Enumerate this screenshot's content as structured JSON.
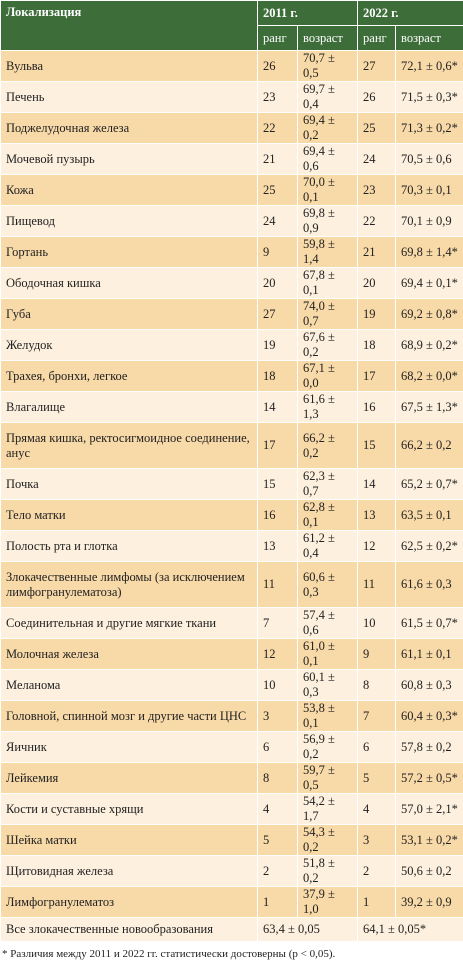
{
  "table": {
    "header": {
      "location": "Локализация",
      "year1": "2011 г.",
      "year2": "2022 г.",
      "rank": "ранг",
      "age": "возраст"
    },
    "rows": [
      [
        "Вульва",
        "26",
        "70,7 ± 0,5",
        "27",
        "72,1 ± 0,6*"
      ],
      [
        "Печень",
        "23",
        "69,7 ± 0,4",
        "26",
        "71,5 ± 0,3*"
      ],
      [
        "Поджелудочная железа",
        "22",
        "69,4 ± 0,2",
        "25",
        "71,3 ± 0,2*"
      ],
      [
        "Мочевой пузырь",
        "21",
        "69,4 ± 0,6",
        "24",
        "70,5 ± 0,6"
      ],
      [
        "Кожа",
        "25",
        "70,0 ± 0,1",
        "23",
        "70,3 ± 0,1"
      ],
      [
        "Пищевод",
        "24",
        "69,8 ± 0,9",
        "22",
        "70,1 ± 0,9"
      ],
      [
        "Гортань",
        "9",
        "59,8 ± 1,4",
        "21",
        "69,8 ± 1,4*"
      ],
      [
        "Ободочная кишка",
        "20",
        "67,8 ± 0,1",
        "20",
        "69,4 ± 0,1*"
      ],
      [
        "Губа",
        "27",
        "74,0 ± 0,7",
        "19",
        "69,2 ± 0,8*"
      ],
      [
        "Желудок",
        "19",
        "67,6 ± 0,2",
        "18",
        "68,9 ± 0,2*"
      ],
      [
        "Трахея, бронхи, легкое",
        "18",
        "67,1 ± 0,0",
        "17",
        "68,2 ± 0,0*"
      ],
      [
        "Влагалище",
        "14",
        "61,6 ± 1,3",
        "16",
        "67,5 ± 1,3*"
      ],
      [
        "Прямая кишка, ректосигмоидное соединение, анус",
        "17",
        "66,2 ± 0,2",
        "15",
        "66,2 ± 0,2"
      ],
      [
        "Почка",
        "15",
        "62,3 ± 0,7",
        "14",
        "65,2 ± 0,7*"
      ],
      [
        "Тело матки",
        "16",
        "62,8 ± 0,1",
        "13",
        "63,5 ± 0,1"
      ],
      [
        "Полость рта и глотка",
        "13",
        "61,2 ± 0,4",
        "12",
        "62,5 ± 0,2*"
      ],
      [
        "Злокачественные лимфомы (за исключением лимфогранулематоза)",
        "11",
        "60,6 ± 0,3",
        "11",
        "61,6 ± 0,3"
      ],
      [
        "Соединительная и другие мягкие ткани",
        "7",
        "57,4 ± 0,6",
        "10",
        "61,5 ± 0,7*"
      ],
      [
        "Молочная железа",
        "12",
        "61,0 ± 0,1",
        "9",
        "61,1 ± 0,1"
      ],
      [
        "Меланома",
        "10",
        "60,1 ± 0,3",
        "8",
        "60,8 ± 0,3"
      ],
      [
        "Головной, спинной мозг и другие части ЦНС",
        "3",
        "53,8 ± 0,1",
        "7",
        "60,4 ± 0,3*"
      ],
      [
        "Яичник",
        "6",
        "56,9 ± 0,2",
        "6",
        "57,8 ± 0,2"
      ],
      [
        "Лейкемия",
        "8",
        "59,7 ± 0,5",
        "5",
        "57,2 ± 0,5*"
      ],
      [
        "Кости и суставные хрящи",
        "4",
        "54,2 ± 1,7",
        "4",
        "57,0 ± 2,1*"
      ],
      [
        "Шейка матки",
        "5",
        "54,3 ± 0,2",
        "3",
        "53,1 ± 0,2*"
      ],
      [
        "Щитовидная железа",
        "2",
        "51,8 ± 0,2",
        "2",
        "50,6 ± 0,2"
      ],
      [
        "Лимфогранулематоз",
        "1",
        "37,9 ± 1,0",
        "1",
        "39,2 ± 0,9"
      ]
    ],
    "total": [
      "Все злокачественные новообразования",
      "63,4 ± 0,05",
      "64,1 ± 0,05*"
    ],
    "footnote": "* Различия между 2011 и 2022 гг. статистически достоверны (p < 0,05)."
  }
}
